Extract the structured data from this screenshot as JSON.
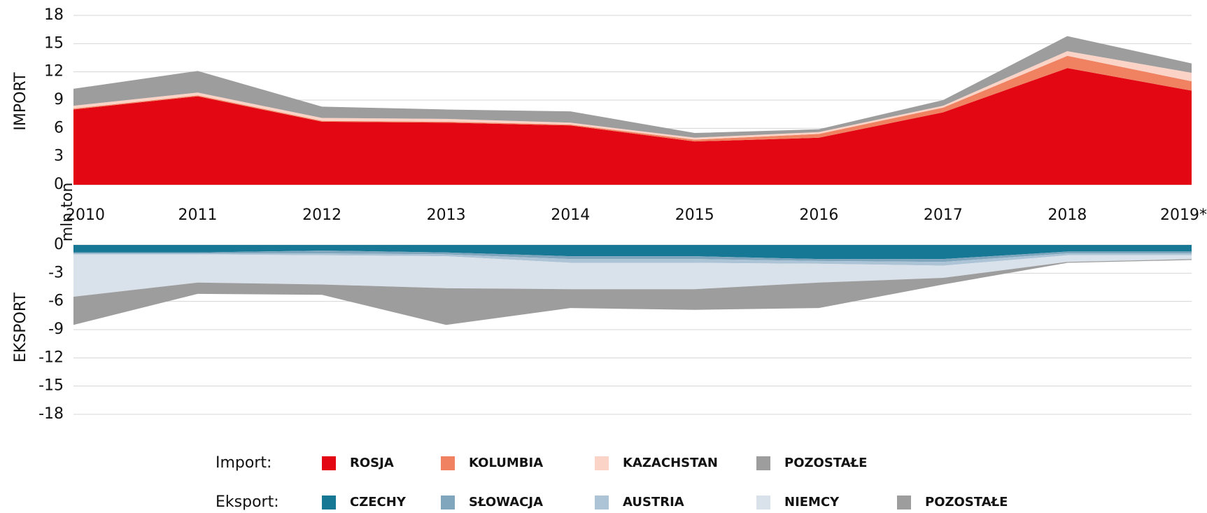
{
  "unit_label": "mln ton",
  "chart_data": [
    {
      "type": "area",
      "stacked": true,
      "ylabel": "IMPORT",
      "legend_title": "Import:",
      "categories": [
        "2010",
        "2011",
        "2012",
        "2013",
        "2014",
        "2015",
        "2016",
        "2017",
        "2018",
        "2019*"
      ],
      "ylim": [
        0,
        18
      ],
      "yticks": [
        0,
        3,
        6,
        9,
        12,
        15,
        18
      ],
      "grid": true,
      "series": [
        {
          "name": "ROSJA",
          "color": "#e30613",
          "values": [
            8.0,
            9.4,
            6.7,
            6.6,
            6.3,
            4.6,
            5.0,
            7.7,
            12.4,
            10.0
          ]
        },
        {
          "name": "KOLUMBIA",
          "color": "#f08262",
          "values": [
            0.1,
            0.1,
            0.1,
            0.1,
            0.1,
            0.2,
            0.4,
            0.5,
            1.3,
            1.0
          ]
        },
        {
          "name": "KAZACHSTAN",
          "color": "#fbd4c7",
          "values": [
            0.3,
            0.3,
            0.3,
            0.3,
            0.2,
            0.2,
            0.2,
            0.2,
            0.5,
            0.9
          ]
        },
        {
          "name": "POZOSTAŁE",
          "color": "#9d9d9d",
          "values": [
            1.8,
            2.3,
            1.2,
            1.0,
            1.2,
            0.5,
            0.3,
            0.6,
            1.6,
            1.0
          ]
        }
      ]
    },
    {
      "type": "area",
      "stacked": true,
      "ylabel": "EKSPORT",
      "legend_title": "Eksport:",
      "categories": [
        "2010",
        "2011",
        "2012",
        "2013",
        "2014",
        "2015",
        "2016",
        "2017",
        "2018",
        "2019*"
      ],
      "ylim": [
        -18,
        0
      ],
      "yticks": [
        0,
        -3,
        -6,
        -9,
        -12,
        -15,
        -18
      ],
      "grid": true,
      "series": [
        {
          "name": "CZECHY",
          "color": "#177896",
          "values": [
            -0.8,
            -0.8,
            -0.6,
            -0.8,
            -1.2,
            -1.2,
            -1.5,
            -1.5,
            -0.7,
            -0.7
          ]
        },
        {
          "name": "SŁOWACJA",
          "color": "#7fa6bd",
          "values": [
            -0.1,
            -0.1,
            -0.3,
            -0.2,
            -0.3,
            -0.3,
            -0.2,
            -0.3,
            -0.2,
            -0.2
          ]
        },
        {
          "name": "AUSTRIA",
          "color": "#adc4d6",
          "values": [
            -0.1,
            -0.1,
            -0.2,
            -0.2,
            -0.4,
            -0.4,
            -0.3,
            -0.4,
            -0.2,
            -0.2
          ]
        },
        {
          "name": "NIEMCY",
          "color": "#d9e1ea",
          "values": [
            -4.5,
            -3.0,
            -3.1,
            -3.4,
            -2.8,
            -2.8,
            -2.0,
            -1.3,
            -0.7,
            -0.4
          ]
        },
        {
          "name": "POZOSTAŁE",
          "color": "#9d9d9d",
          "values": [
            -3.0,
            -1.2,
            -1.1,
            -3.9,
            -2.0,
            -2.2,
            -2.7,
            -0.7,
            -0.1,
            -0.1
          ]
        }
      ]
    }
  ]
}
